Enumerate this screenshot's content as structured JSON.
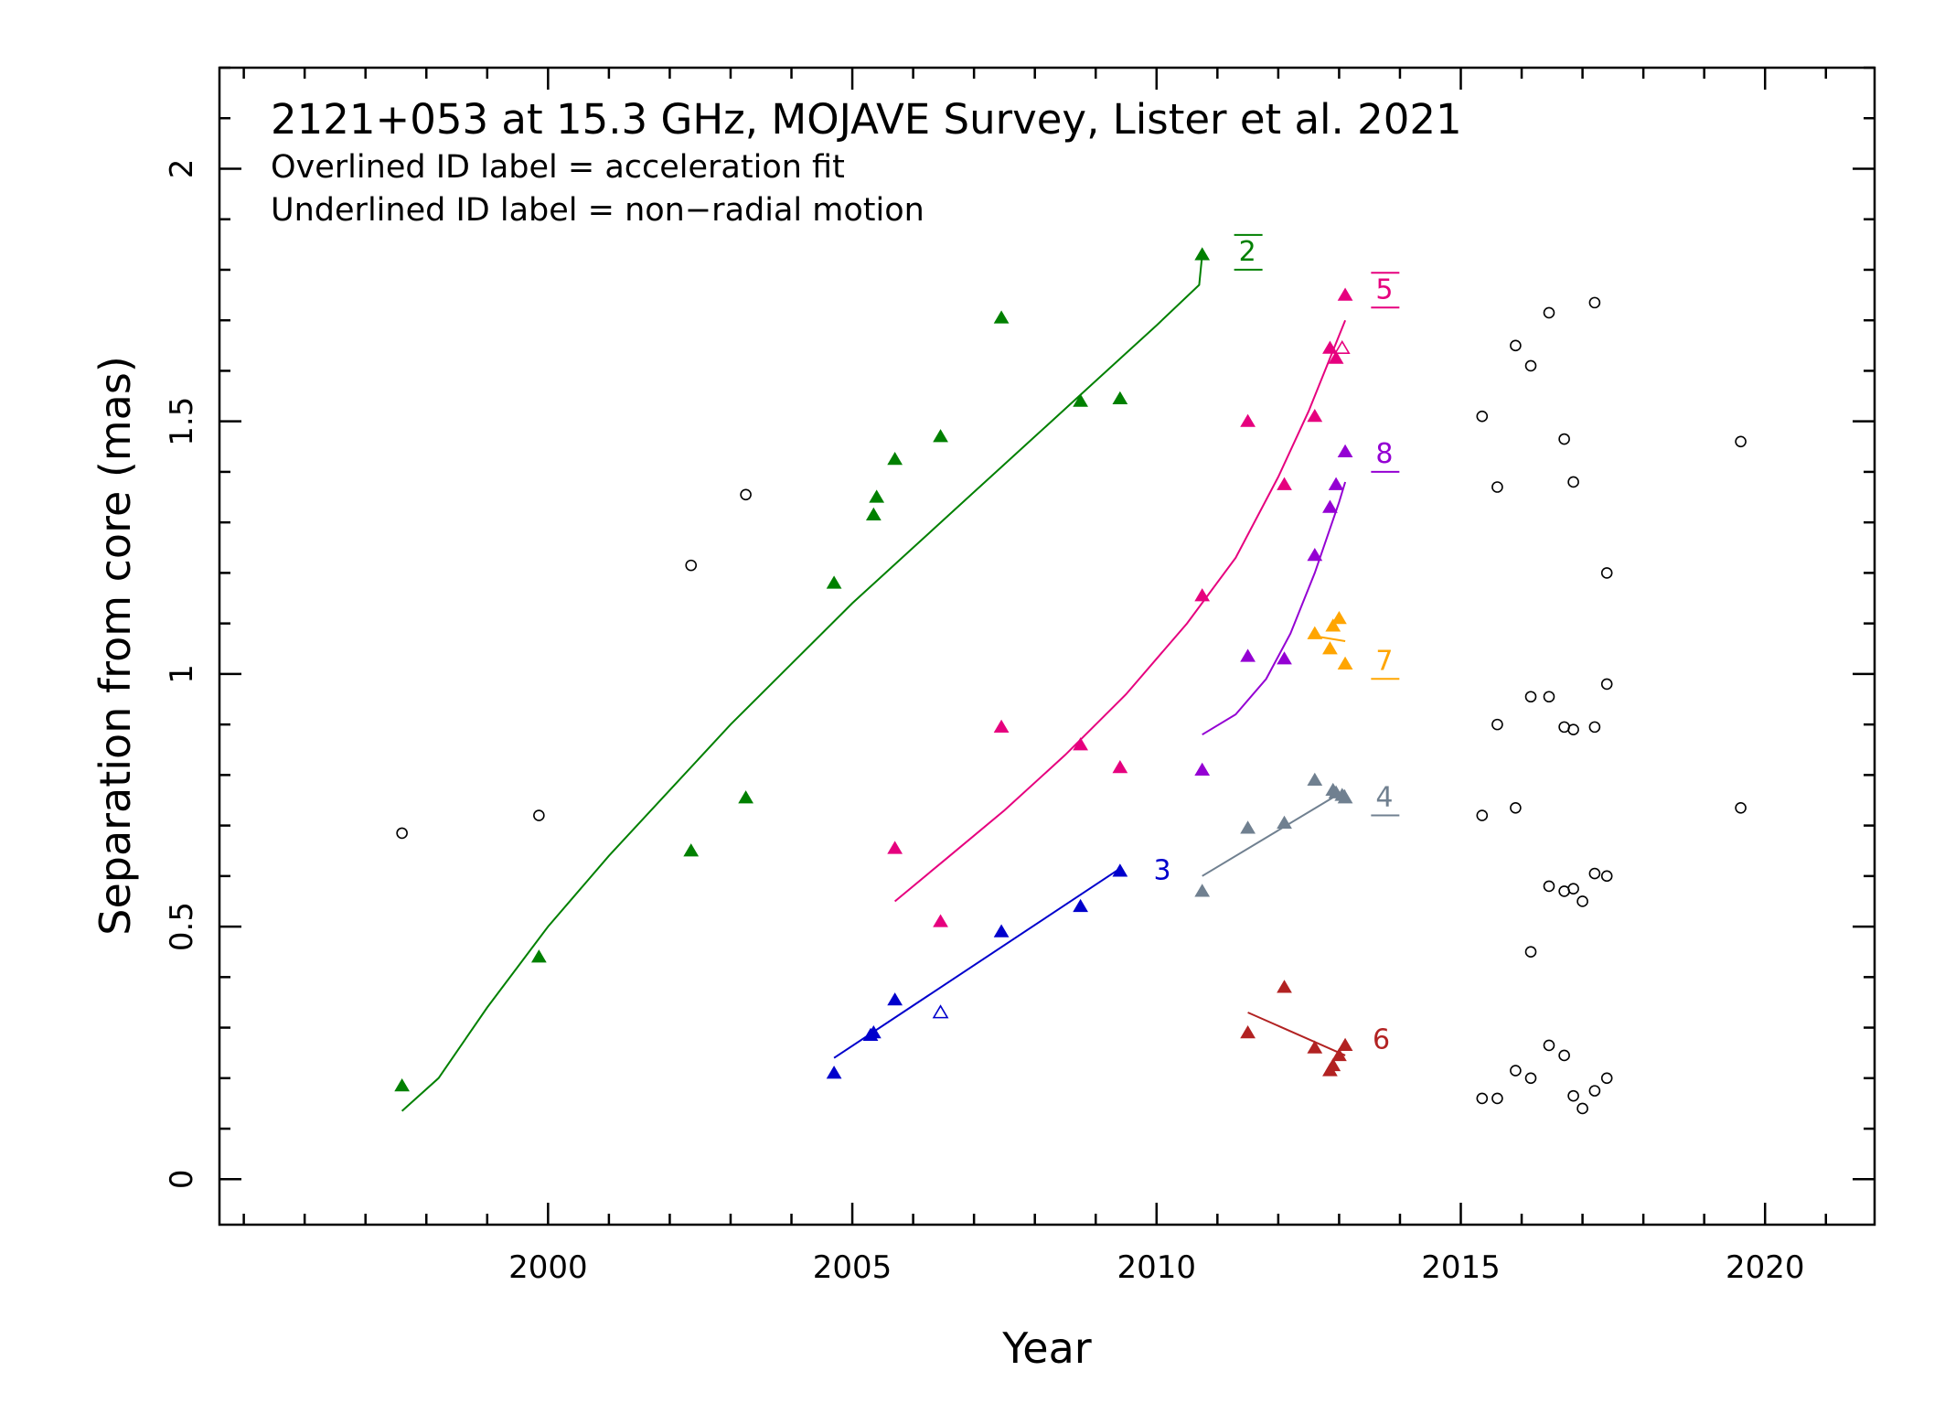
{
  "chart_data": {
    "type": "scatter",
    "title": "2121+053 at 15.3 GHz, MOJAVE Survey, Lister et al. 2021",
    "subtitle_lines": [
      "Overlined ID label = acceleration fit",
      "Underlined ID label = non−radial motion"
    ],
    "xlabel": "Year",
    "ylabel": "Separation from core (mas)",
    "xlim": [
      1994.6,
      2021.8
    ],
    "ylim": [
      -0.09,
      2.2
    ],
    "x_ticks": [
      2000,
      2005,
      2010,
      2015,
      2020
    ],
    "x_tick_labels": [
      "2000",
      "2005",
      "2010",
      "2015",
      "2020"
    ],
    "y_ticks": [
      0,
      0.5,
      1,
      1.5,
      2
    ],
    "y_tick_labels": [
      "0",
      "0.5",
      "1",
      "1.5",
      "2"
    ],
    "x_minor_step": 1,
    "y_minor_step": 0.1,
    "grid": false,
    "series": [
      {
        "name": "2",
        "color": "#008000",
        "decoration": "overline-underline",
        "label_pos": [
          2011.35,
          1.84
        ],
        "points": [
          [
            1997.6,
            0.185
          ],
          [
            1999.85,
            0.44
          ],
          [
            2002.35,
            0.65
          ],
          [
            2003.25,
            0.755
          ],
          [
            2004.7,
            1.18
          ],
          [
            2005.35,
            1.315
          ],
          [
            2005.4,
            1.35
          ],
          [
            2005.7,
            1.425
          ],
          [
            2006.45,
            1.47
          ],
          [
            2007.45,
            1.705
          ],
          [
            2008.75,
            1.54
          ],
          [
            2009.4,
            1.545
          ],
          [
            2010.75,
            1.83
          ]
        ],
        "open_points": [],
        "fit": [
          [
            1997.6,
            0.135
          ],
          [
            1998.2,
            0.2
          ],
          [
            1999.0,
            0.34
          ],
          [
            2000.0,
            0.5
          ],
          [
            2001.0,
            0.64
          ],
          [
            2002.0,
            0.77
          ],
          [
            2003.0,
            0.9
          ],
          [
            2004.0,
            1.02
          ],
          [
            2005.0,
            1.14
          ],
          [
            2006.0,
            1.25
          ],
          [
            2007.0,
            1.36
          ],
          [
            2008.0,
            1.47
          ],
          [
            2009.0,
            1.58
          ],
          [
            2010.0,
            1.69
          ],
          [
            2010.7,
            1.77
          ],
          [
            2010.75,
            1.83
          ]
        ]
      },
      {
        "name": "3",
        "color": "#0000cc",
        "decoration": "none",
        "label_pos": [
          2009.95,
          0.615
        ],
        "points": [
          [
            2004.7,
            0.21
          ],
          [
            2005.3,
            0.285
          ],
          [
            2005.35,
            0.29
          ],
          [
            2005.7,
            0.355
          ],
          [
            2007.45,
            0.49
          ],
          [
            2008.75,
            0.54
          ],
          [
            2009.4,
            0.61
          ]
        ],
        "open_points": [
          [
            2006.45,
            0.33
          ]
        ],
        "fit": [
          [
            2004.7,
            0.24
          ],
          [
            2009.4,
            0.615
          ]
        ]
      },
      {
        "name": "4",
        "color": "#708090",
        "decoration": "underline",
        "label_pos": [
          2013.6,
          0.76
        ],
        "points": [
          [
            2010.75,
            0.57
          ],
          [
            2011.5,
            0.695
          ],
          [
            2012.1,
            0.705
          ],
          [
            2012.6,
            0.79
          ],
          [
            2012.9,
            0.77
          ],
          [
            2012.95,
            0.765
          ],
          [
            2013.05,
            0.76
          ],
          [
            2013.1,
            0.755
          ]
        ],
        "open_points": [],
        "fit": [
          [
            2010.75,
            0.6
          ],
          [
            2013.1,
            0.77
          ]
        ]
      },
      {
        "name": "5",
        "color": "#e6007e",
        "decoration": "overline-underline",
        "label_pos": [
          2013.6,
          1.765
        ],
        "points": [
          [
            2005.7,
            0.655
          ],
          [
            2006.45,
            0.51
          ],
          [
            2007.45,
            0.895
          ],
          [
            2008.75,
            0.86
          ],
          [
            2009.4,
            0.815
          ],
          [
            2010.75,
            1.155
          ],
          [
            2011.5,
            1.5
          ],
          [
            2012.1,
            1.375
          ],
          [
            2012.6,
            1.51
          ],
          [
            2012.85,
            1.645
          ],
          [
            2012.95,
            1.625
          ],
          [
            2013.1,
            1.75
          ]
        ],
        "open_points": [
          [
            2013.05,
            1.645
          ]
        ],
        "fit": [
          [
            2005.7,
            0.55
          ],
          [
            2006.5,
            0.63
          ],
          [
            2007.5,
            0.73
          ],
          [
            2008.5,
            0.84
          ],
          [
            2009.5,
            0.96
          ],
          [
            2010.5,
            1.1
          ],
          [
            2011.3,
            1.23
          ],
          [
            2012.0,
            1.39
          ],
          [
            2012.5,
            1.52
          ],
          [
            2013.1,
            1.7
          ]
        ]
      },
      {
        "name": "6",
        "color": "#b22222",
        "decoration": "none",
        "label_pos": [
          2013.55,
          0.28
        ],
        "points": [
          [
            2011.5,
            0.29
          ],
          [
            2012.1,
            0.38
          ],
          [
            2012.6,
            0.26
          ],
          [
            2012.85,
            0.215
          ],
          [
            2012.9,
            0.225
          ],
          [
            2013.0,
            0.245
          ],
          [
            2013.1,
            0.265
          ]
        ],
        "open_points": [],
        "fit": [
          [
            2011.5,
            0.33
          ],
          [
            2013.1,
            0.245
          ]
        ]
      },
      {
        "name": "7",
        "color": "#ffa500",
        "decoration": "underline",
        "label_pos": [
          2013.6,
          1.03
        ],
        "points": [
          [
            2012.6,
            1.08
          ],
          [
            2012.85,
            1.05
          ],
          [
            2012.9,
            1.095
          ],
          [
            2013.0,
            1.11
          ],
          [
            2013.1,
            1.02
          ]
        ],
        "open_points": [],
        "fit": [
          [
            2012.6,
            1.075
          ],
          [
            2013.1,
            1.065
          ]
        ]
      },
      {
        "name": "8",
        "color": "#9400d3",
        "decoration": "underline",
        "label_pos": [
          2013.6,
          1.44
        ],
        "points": [
          [
            2010.75,
            0.81
          ],
          [
            2011.5,
            1.035
          ],
          [
            2012.1,
            1.03
          ],
          [
            2012.6,
            1.235
          ],
          [
            2012.85,
            1.33
          ],
          [
            2012.95,
            1.375
          ],
          [
            2013.1,
            1.44
          ]
        ],
        "open_points": [],
        "fit": [
          [
            2010.75,
            0.88
          ],
          [
            2011.3,
            0.92
          ],
          [
            2011.8,
            0.99
          ],
          [
            2012.2,
            1.08
          ],
          [
            2012.6,
            1.2
          ],
          [
            2013.0,
            1.34
          ],
          [
            2013.1,
            1.38
          ]
        ]
      }
    ],
    "unassigned_points": [
      [
        1997.6,
        0.685
      ],
      [
        1999.85,
        0.72
      ],
      [
        2002.35,
        1.215
      ],
      [
        2003.25,
        1.355
      ],
      [
        2015.35,
        1.51
      ],
      [
        2015.35,
        0.72
      ],
      [
        2015.35,
        0.16
      ],
      [
        2015.6,
        1.37
      ],
      [
        2015.6,
        0.9
      ],
      [
        2015.6,
        0.16
      ],
      [
        2015.9,
        1.65
      ],
      [
        2015.9,
        0.735
      ],
      [
        2015.9,
        0.215
      ],
      [
        2016.15,
        1.61
      ],
      [
        2016.15,
        0.955
      ],
      [
        2016.15,
        0.45
      ],
      [
        2016.15,
        0.2
      ],
      [
        2016.45,
        1.715
      ],
      [
        2016.45,
        0.955
      ],
      [
        2016.45,
        0.58
      ],
      [
        2016.45,
        0.265
      ],
      [
        2016.7,
        1.465
      ],
      [
        2016.7,
        0.895
      ],
      [
        2016.7,
        0.57
      ],
      [
        2016.7,
        0.245
      ],
      [
        2016.85,
        1.38
      ],
      [
        2016.85,
        0.89
      ],
      [
        2016.85,
        0.575
      ],
      [
        2016.85,
        0.165
      ],
      [
        2017.0,
        0.55
      ],
      [
        2017.0,
        0.14
      ],
      [
        2017.2,
        1.735
      ],
      [
        2017.2,
        0.895
      ],
      [
        2017.2,
        0.605
      ],
      [
        2017.2,
        0.175
      ],
      [
        2017.4,
        1.2
      ],
      [
        2017.4,
        0.98
      ],
      [
        2017.4,
        0.6
      ],
      [
        2017.4,
        0.2
      ],
      [
        2019.6,
        1.46
      ],
      [
        2019.6,
        0.735
      ]
    ]
  }
}
